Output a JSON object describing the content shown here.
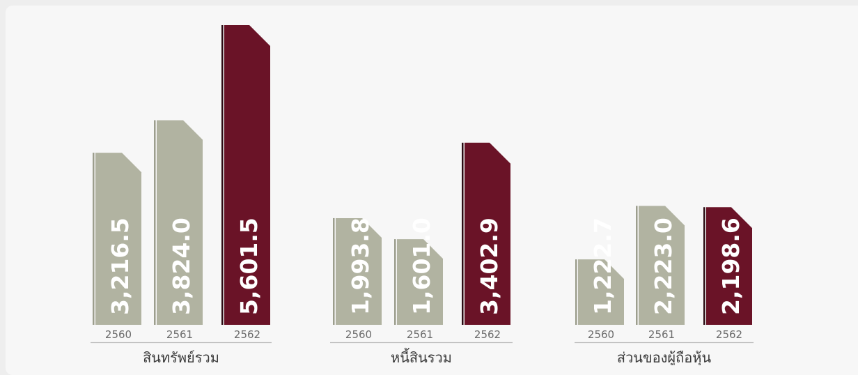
{
  "colors": {
    "grey_bar": "#b1b3a1",
    "highlight_bar": "#6a1327",
    "value_text": "#ffffff",
    "year_text": "#6b6b6b",
    "group_text": "#3a3a3a",
    "baseline": "#bdbdbd"
  },
  "chart_data": [
    {
      "type": "bar",
      "title": "สินทรัพย์รวม",
      "categories": [
        "2560",
        "2561",
        "2562"
      ],
      "values": [
        3216.5,
        3824.0,
        5601.5
      ],
      "value_labels": [
        "3,216.5",
        "3,824.0",
        "5,601.5"
      ],
      "highlight_index": 2
    },
    {
      "type": "bar",
      "title": "หนี้สินรวม",
      "categories": [
        "2560",
        "2561",
        "2562"
      ],
      "values": [
        1993.8,
        1601.0,
        3402.9
      ],
      "value_labels": [
        "1,993.8",
        "1,601.0",
        "3,402.9"
      ],
      "highlight_index": 2
    },
    {
      "type": "bar",
      "title": "ส่วนของผู้ถือหุ้น",
      "categories": [
        "2560",
        "2561",
        "2562"
      ],
      "values": [
        1222.7,
        2223.0,
        2198.6
      ],
      "value_labels": [
        "1,222.7",
        "2,223.0",
        "2,198.6"
      ],
      "highlight_index": 2
    }
  ]
}
